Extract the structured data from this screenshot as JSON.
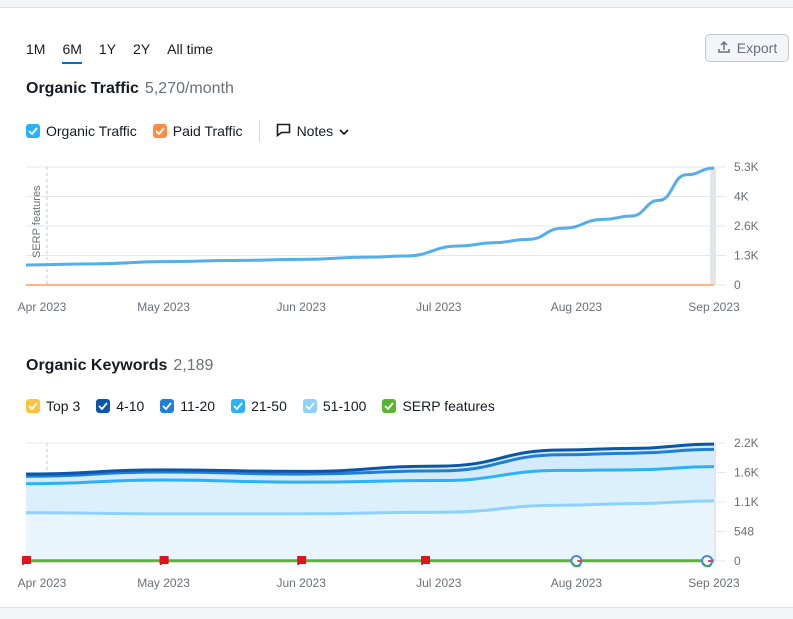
{
  "periods": [
    {
      "label": "1M",
      "active": false
    },
    {
      "label": "6M",
      "active": true
    },
    {
      "label": "1Y",
      "active": false
    },
    {
      "label": "2Y",
      "active": false
    },
    {
      "label": "All time",
      "active": false
    }
  ],
  "export_label": "Export",
  "traffic": {
    "title": "Organic Traffic",
    "value": "5,270/month",
    "legend": [
      {
        "label": "Organic Traffic",
        "color": "#2bb1f7"
      },
      {
        "label": "Paid Traffic",
        "color": "#ff8c43"
      }
    ],
    "notes_label": "Notes",
    "serp_label": "SERP features"
  },
  "keywords": {
    "title": "Organic Keywords",
    "value": "2,189",
    "legend": [
      {
        "label": "Top 3",
        "color": "#ffc23d"
      },
      {
        "label": "4-10",
        "color": "#0a56a8"
      },
      {
        "label": "11-20",
        "color": "#1f7fd6"
      },
      {
        "label": "21-50",
        "color": "#2bb1f7"
      },
      {
        "label": "51-100",
        "color": "#8cd2fb"
      },
      {
        "label": "SERP features",
        "color": "#57b530"
      }
    ]
  },
  "chart_data": [
    {
      "type": "line",
      "title": "Organic Traffic",
      "x": [
        "Apr 2023",
        "May 2023",
        "Jun 2023",
        "Jul 2023",
        "Aug 2023",
        "Sep 2023"
      ],
      "y_ticks": [
        "0",
        "1.3K",
        "2.6K",
        "4K",
        "5.3K"
      ],
      "ylim": [
        0,
        5300
      ],
      "series": [
        {
          "name": "Organic Traffic",
          "color": "#56aee8",
          "points": [
            [
              0,
              900
            ],
            [
              0.1,
              950
            ],
            [
              0.2,
              1050
            ],
            [
              0.3,
              1100
            ],
            [
              0.4,
              1150
            ],
            [
              0.5,
              1250
            ],
            [
              0.55,
              1300
            ],
            [
              0.63,
              1750
            ],
            [
              0.68,
              1900
            ],
            [
              0.73,
              2050
            ],
            [
              0.78,
              2550
            ],
            [
              0.84,
              2950
            ],
            [
              0.88,
              3100
            ],
            [
              0.92,
              3800
            ],
            [
              0.96,
              4950
            ],
            [
              1,
              5250
            ]
          ]
        },
        {
          "name": "Paid Traffic",
          "color": "#ffb386",
          "points": [
            [
              0,
              0
            ],
            [
              1,
              0
            ]
          ]
        }
      ]
    },
    {
      "type": "area",
      "title": "Organic Keywords",
      "x": [
        "Apr 2023",
        "May 2023",
        "Jun 2023",
        "Jul 2023",
        "Aug 2023",
        "Sep 2023"
      ],
      "y_ticks": [
        "0",
        "548",
        "1.1K",
        "1.6K",
        "2.2K"
      ],
      "ylim": [
        0,
        2200
      ],
      "series": [
        {
          "name": "51-100",
          "color": "#8cd2fb",
          "points": [
            [
              0,
              900
            ],
            [
              0.2,
              880
            ],
            [
              0.4,
              880
            ],
            [
              0.6,
              910
            ],
            [
              0.78,
              1040
            ],
            [
              0.88,
              1070
            ],
            [
              1,
              1120
            ]
          ]
        },
        {
          "name": "21-50",
          "color": "#2bb1f7",
          "points": [
            [
              0,
              1440
            ],
            [
              0.2,
              1510
            ],
            [
              0.4,
              1470
            ],
            [
              0.6,
              1500
            ],
            [
              0.78,
              1690
            ],
            [
              0.88,
              1700
            ],
            [
              1,
              1760
            ]
          ]
        },
        {
          "name": "11-20",
          "color": "#1f7fd6",
          "points": [
            [
              0,
              1580
            ],
            [
              0.2,
              1660
            ],
            [
              0.4,
              1620
            ],
            [
              0.6,
              1680
            ],
            [
              0.78,
              1980
            ],
            [
              0.88,
              2010
            ],
            [
              1,
              2080
            ]
          ]
        },
        {
          "name": "4-10",
          "color": "#0a56a8",
          "points": [
            [
              0,
              1620
            ],
            [
              0.2,
              1700
            ],
            [
              0.4,
              1670
            ],
            [
              0.6,
              1770
            ],
            [
              0.78,
              2070
            ],
            [
              0.88,
              2100
            ],
            [
              1,
              2180
            ]
          ]
        },
        {
          "name": "SERP features",
          "color": "#57b530",
          "points": [
            [
              0,
              5
            ],
            [
              1,
              5
            ]
          ]
        }
      ],
      "markers": [
        {
          "x": 0.0,
          "type": "flag"
        },
        {
          "x": 0.2,
          "type": "flag"
        },
        {
          "x": 0.4,
          "type": "flag"
        },
        {
          "x": 0.58,
          "type": "flag"
        },
        {
          "x": 0.8,
          "type": "google"
        },
        {
          "x": 0.99,
          "type": "google"
        }
      ]
    }
  ]
}
